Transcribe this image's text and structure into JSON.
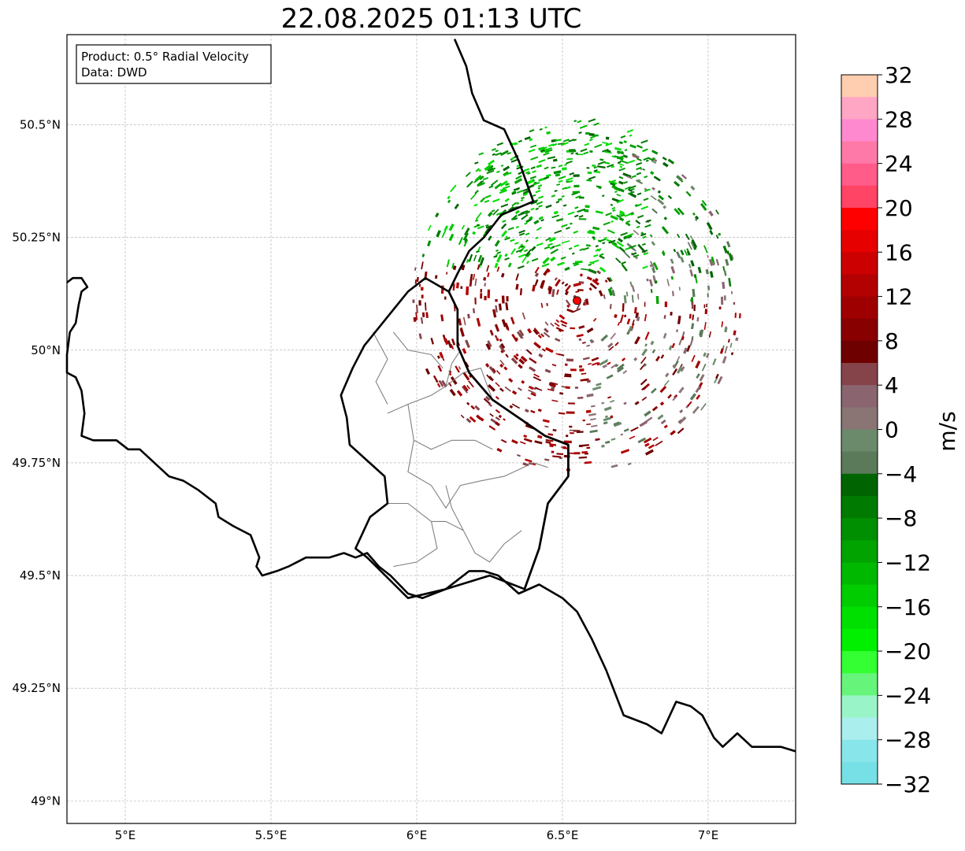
{
  "title": "22.08.2025 01:13 UTC",
  "info": {
    "product": "Product: 0.5° Radial Velocity",
    "data_source": "Data: DWD"
  },
  "axes": {
    "x_ticks": [
      {
        "value": 5.0,
        "label": "5°E"
      },
      {
        "value": 5.5,
        "label": "5.5°E"
      },
      {
        "value": 6.0,
        "label": "6°E"
      },
      {
        "value": 6.5,
        "label": "6.5°E"
      },
      {
        "value": 7.0,
        "label": "7°E"
      }
    ],
    "y_ticks": [
      {
        "value": 49.0,
        "label": "49°N"
      },
      {
        "value": 49.25,
        "label": "49.25°N"
      },
      {
        "value": 49.5,
        "label": "49.5°N"
      },
      {
        "value": 49.75,
        "label": "49.75°N"
      },
      {
        "value": 50.0,
        "label": "50°N"
      },
      {
        "value": 50.25,
        "label": "50.25°N"
      },
      {
        "value": 50.5,
        "label": "50.5°N"
      }
    ],
    "lon_range": [
      4.8,
      7.3
    ],
    "lat_range": [
      48.95,
      50.7
    ],
    "grid": true
  },
  "radar_site": {
    "lon": 6.55,
    "lat": 50.11,
    "color": "#ff0000"
  },
  "colorbar": {
    "label": "m/s",
    "min": -32,
    "max": 32,
    "ticks": [
      {
        "value": 32,
        "label": "32"
      },
      {
        "value": 28,
        "label": "28"
      },
      {
        "value": 24,
        "label": "24"
      },
      {
        "value": 20,
        "label": "20"
      },
      {
        "value": 16,
        "label": "16"
      },
      {
        "value": 12,
        "label": "12"
      },
      {
        "value": 8,
        "label": "8"
      },
      {
        "value": 4,
        "label": "4"
      },
      {
        "value": 0,
        "label": "0"
      },
      {
        "value": -4,
        "label": "−4"
      },
      {
        "value": -8,
        "label": "−8"
      },
      {
        "value": -12,
        "label": "−12"
      },
      {
        "value": -16,
        "label": "−16"
      },
      {
        "value": -20,
        "label": "−20"
      },
      {
        "value": -24,
        "label": "−24"
      },
      {
        "value": -28,
        "label": "−28"
      },
      {
        "value": -32,
        "label": "−32"
      }
    ],
    "colors_top_to_bottom": [
      "#ffcdaf",
      "#ffa6c4",
      "#ff89cf",
      "#ff79a8",
      "#ff5c8a",
      "#ff4466",
      "#ff0000",
      "#e60000",
      "#cc0000",
      "#b30000",
      "#9e0000",
      "#880000",
      "#6e0000",
      "#85444a",
      "#8a6570",
      "#8a7474",
      "#6b8a6b",
      "#5a7a5a",
      "#006400",
      "#007a00",
      "#008f00",
      "#00a300",
      "#00b800",
      "#00cc00",
      "#00e000",
      "#00f000",
      "#33ff33",
      "#66f57a",
      "#99f5c8",
      "#aaeeee",
      "#88e6ea",
      "#77e0e6"
    ]
  },
  "country_border": [
    [
      4.8,
      50.15
    ],
    [
      4.82,
      50.16
    ],
    [
      4.85,
      50.16
    ],
    [
      4.87,
      50.14
    ],
    [
      4.85,
      50.13
    ],
    [
      4.84,
      50.1
    ],
    [
      4.83,
      50.06
    ],
    [
      4.81,
      50.04
    ],
    [
      4.8,
      49.99
    ],
    [
      4.8,
      49.95
    ],
    [
      4.83,
      49.94
    ],
    [
      4.85,
      49.91
    ],
    [
      4.86,
      49.86
    ],
    [
      4.85,
      49.81
    ],
    [
      4.89,
      49.8
    ],
    [
      4.93,
      49.8
    ],
    [
      4.97,
      49.8
    ],
    [
      5.01,
      49.78
    ],
    [
      5.05,
      49.78
    ],
    [
      5.1,
      49.75
    ],
    [
      5.15,
      49.72
    ],
    [
      5.2,
      49.71
    ],
    [
      5.25,
      49.69
    ],
    [
      5.31,
      49.66
    ],
    [
      5.32,
      49.63
    ],
    [
      5.37,
      49.61
    ],
    [
      5.43,
      49.59
    ],
    [
      5.46,
      49.54
    ],
    [
      5.45,
      49.52
    ],
    [
      5.47,
      49.5
    ],
    [
      5.52,
      49.51
    ],
    [
      5.56,
      49.52
    ],
    [
      5.62,
      49.54
    ],
    [
      5.7,
      49.54
    ],
    [
      5.75,
      49.55
    ],
    [
      5.79,
      49.54
    ],
    [
      5.83,
      49.55
    ],
    [
      5.87,
      49.52
    ],
    [
      5.91,
      49.5
    ],
    [
      5.97,
      49.46
    ],
    [
      6.02,
      49.45
    ],
    [
      6.1,
      49.47
    ],
    [
      6.18,
      49.51
    ],
    [
      6.23,
      49.51
    ],
    [
      6.28,
      49.5
    ],
    [
      6.35,
      49.46
    ],
    [
      6.42,
      49.48
    ],
    [
      6.5,
      49.45
    ],
    [
      6.55,
      49.42
    ],
    [
      6.6,
      49.36
    ],
    [
      6.65,
      49.29
    ],
    [
      6.71,
      49.19
    ],
    [
      6.79,
      49.17
    ],
    [
      6.84,
      49.15
    ],
    [
      6.89,
      49.22
    ],
    [
      6.94,
      49.21
    ],
    [
      6.98,
      49.19
    ],
    [
      7.02,
      49.14
    ],
    [
      7.05,
      49.12
    ],
    [
      7.1,
      49.15
    ],
    [
      7.15,
      49.12
    ],
    [
      7.2,
      49.12
    ],
    [
      7.25,
      49.12
    ],
    [
      7.3,
      49.11
    ]
  ],
  "lux_border": [
    [
      5.83,
      49.54
    ],
    [
      5.79,
      49.56
    ],
    [
      5.84,
      49.63
    ],
    [
      5.9,
      49.66
    ],
    [
      5.89,
      49.72
    ],
    [
      5.77,
      49.79
    ],
    [
      5.76,
      49.85
    ],
    [
      5.74,
      49.9
    ],
    [
      5.78,
      49.96
    ],
    [
      5.82,
      50.01
    ],
    [
      5.87,
      50.05
    ],
    [
      5.97,
      50.13
    ],
    [
      6.03,
      50.16
    ],
    [
      6.11,
      50.13
    ],
    [
      6.14,
      50.09
    ],
    [
      6.14,
      50.01
    ],
    [
      6.18,
      49.95
    ],
    [
      6.26,
      49.89
    ],
    [
      6.35,
      49.85
    ],
    [
      6.44,
      49.81
    ],
    [
      6.52,
      49.79
    ],
    [
      6.52,
      49.72
    ],
    [
      6.45,
      49.66
    ],
    [
      6.42,
      49.56
    ],
    [
      6.37,
      49.47
    ],
    [
      6.25,
      49.5
    ],
    [
      6.1,
      49.47
    ],
    [
      5.97,
      49.45
    ],
    [
      5.83,
      49.54
    ]
  ],
  "de_border": [
    [
      6.13,
      50.69
    ],
    [
      6.17,
      50.63
    ],
    [
      6.19,
      50.57
    ],
    [
      6.23,
      50.51
    ],
    [
      6.3,
      50.49
    ],
    [
      6.35,
      50.42
    ],
    [
      6.4,
      50.33
    ],
    [
      6.29,
      50.3
    ],
    [
      6.23,
      50.25
    ],
    [
      6.18,
      50.22
    ],
    [
      6.14,
      50.17
    ],
    [
      6.11,
      50.13
    ],
    [
      6.14,
      50.09
    ],
    [
      6.14,
      50.01
    ],
    [
      6.18,
      49.95
    ],
    [
      6.26,
      49.89
    ],
    [
      6.35,
      49.85
    ],
    [
      6.44,
      49.81
    ],
    [
      6.52,
      49.79
    ],
    [
      6.52,
      49.72
    ],
    [
      6.45,
      49.66
    ],
    [
      6.42,
      49.56
    ],
    [
      6.37,
      49.47
    ]
  ],
  "cantons": [
    [
      [
        5.97,
        49.88
      ],
      [
        6.05,
        49.9
      ],
      [
        6.1,
        49.92
      ],
      [
        6.16,
        49.95
      ],
      [
        6.22,
        49.96
      ],
      [
        6.26,
        49.89
      ]
    ],
    [
      [
        5.97,
        49.88
      ],
      [
        5.99,
        49.8
      ],
      [
        6.05,
        49.78
      ],
      [
        6.12,
        49.8
      ],
      [
        6.2,
        49.8
      ],
      [
        6.26,
        49.78
      ]
    ],
    [
      [
        5.99,
        49.8
      ],
      [
        5.97,
        49.73
      ],
      [
        6.05,
        49.7
      ],
      [
        6.1,
        49.65
      ],
      [
        6.15,
        49.7
      ],
      [
        6.22,
        49.71
      ],
      [
        6.3,
        49.72
      ],
      [
        6.4,
        49.75
      ],
      [
        6.45,
        49.74
      ]
    ],
    [
      [
        5.9,
        49.66
      ],
      [
        5.97,
        49.66
      ],
      [
        6.05,
        49.62
      ],
      [
        6.1,
        49.62
      ],
      [
        6.16,
        49.6
      ],
      [
        6.2,
        49.55
      ],
      [
        6.25,
        49.53
      ],
      [
        6.3,
        49.57
      ],
      [
        6.36,
        49.6
      ]
    ],
    [
      [
        6.05,
        49.62
      ],
      [
        6.07,
        49.56
      ],
      [
        6.0,
        49.53
      ],
      [
        5.92,
        49.52
      ]
    ],
    [
      [
        6.16,
        49.6
      ],
      [
        6.12,
        49.65
      ],
      [
        6.1,
        49.7
      ]
    ],
    [
      [
        6.1,
        49.92
      ],
      [
        6.12,
        49.97
      ],
      [
        6.15,
        50.0
      ]
    ],
    [
      [
        5.9,
        49.86
      ],
      [
        5.97,
        49.88
      ]
    ],
    [
      [
        5.92,
        50.04
      ],
      [
        5.97,
        50.0
      ],
      [
        6.05,
        49.99
      ],
      [
        6.09,
        49.96
      ]
    ],
    [
      [
        5.85,
        50.04
      ],
      [
        5.9,
        49.98
      ],
      [
        5.86,
        49.93
      ],
      [
        5.9,
        49.88
      ]
    ]
  ]
}
